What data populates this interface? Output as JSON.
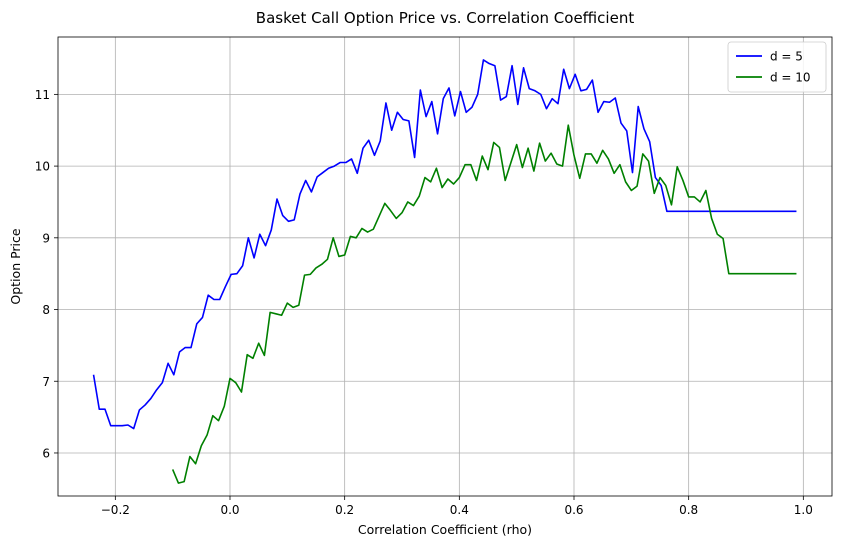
{
  "chart_data": {
    "type": "line",
    "title": "Basket Call Option Price vs. Correlation Coefficient",
    "xlabel": "Correlation Coefficient (rho)",
    "ylabel": "Option Price",
    "xlim": [
      -0.3,
      1.05
    ],
    "ylim": [
      5.4,
      11.8
    ],
    "xticks": [
      -0.2,
      0.0,
      0.2,
      0.4,
      0.6,
      0.8,
      1.0
    ],
    "xtick_labels": [
      "−0.2",
      "0.0",
      "0.2",
      "0.4",
      "0.6",
      "0.8",
      "1.0"
    ],
    "yticks": [
      6,
      7,
      8,
      9,
      10,
      11
    ],
    "ytick_labels": [
      "6",
      "7",
      "8",
      "9",
      "10",
      "11"
    ],
    "grid": true,
    "legend_position": "top-right",
    "series": [
      {
        "name": "d = 5",
        "color": "#0000ff",
        "x": [
          -0.238,
          -0.228,
          -0.218,
          -0.208,
          -0.198,
          -0.188,
          -0.178,
          -0.168,
          -0.158,
          -0.148,
          -0.138,
          -0.128,
          -0.118,
          -0.108,
          -0.098,
          -0.088,
          -0.078,
          -0.068,
          -0.058,
          -0.048,
          -0.038,
          -0.028,
          -0.018,
          -0.008,
          0.002,
          0.012,
          0.022,
          0.032,
          0.042,
          0.052,
          0.062,
          0.072,
          0.082,
          0.092,
          0.102,
          0.112,
          0.122,
          0.132,
          0.142,
          0.152,
          0.162,
          0.172,
          0.182,
          0.192,
          0.202,
          0.212,
          0.222,
          0.232,
          0.242,
          0.252,
          0.262,
          0.272,
          0.282,
          0.292,
          0.302,
          0.312,
          0.322,
          0.332,
          0.342,
          0.352,
          0.362,
          0.372,
          0.382,
          0.392,
          0.402,
          0.412,
          0.422,
          0.432,
          0.442,
          0.452,
          0.462,
          0.472,
          0.482,
          0.492,
          0.502,
          0.512,
          0.522,
          0.532,
          0.542,
          0.552,
          0.562,
          0.572,
          0.582,
          0.592,
          0.602,
          0.612,
          0.622,
          0.632,
          0.642,
          0.652,
          0.662,
          0.672,
          0.682,
          0.692,
          0.702,
          0.712,
          0.722,
          0.732,
          0.742,
          0.752,
          0.762,
          0.772,
          0.782,
          0.792,
          0.802,
          0.812,
          0.822,
          0.832,
          0.842,
          0.852,
          0.862,
          0.872,
          0.882,
          0.892,
          0.902,
          0.912,
          0.922,
          0.932,
          0.942,
          0.952,
          0.962,
          0.972,
          0.982,
          0.988
        ],
        "y": [
          7.09,
          6.61,
          6.61,
          6.38,
          6.38,
          6.38,
          6.39,
          6.34,
          6.6,
          6.67,
          6.76,
          6.88,
          6.98,
          7.25,
          7.09,
          7.41,
          7.47,
          7.47,
          7.8,
          7.89,
          8.2,
          8.14,
          8.14,
          8.32,
          8.49,
          8.5,
          8.61,
          9.0,
          8.72,
          9.05,
          8.89,
          9.11,
          9.54,
          9.31,
          9.23,
          9.25,
          9.61,
          9.8,
          9.64,
          9.85,
          9.91,
          9.97,
          10.0,
          10.05,
          10.05,
          10.1,
          9.9,
          10.25,
          10.36,
          10.15,
          10.35,
          10.88,
          10.5,
          10.75,
          10.65,
          10.63,
          10.12,
          11.06,
          10.69,
          10.9,
          10.45,
          10.94,
          11.09,
          10.7,
          11.04,
          10.75,
          10.82,
          11.0,
          11.48,
          11.43,
          11.4,
          10.92,
          10.97,
          11.4,
          10.86,
          11.37,
          11.08,
          11.05,
          11.0,
          10.8,
          10.94,
          10.87,
          11.35,
          11.08,
          11.28,
          11.05,
          11.07,
          11.2,
          10.75,
          10.9,
          10.89,
          10.95,
          10.6,
          10.49,
          9.91,
          10.83,
          10.52,
          10.34,
          9.84,
          9.73,
          9.37,
          9.37,
          9.37,
          9.37,
          9.37,
          9.37,
          9.37,
          9.37,
          9.37,
          9.37,
          9.37,
          9.37,
          9.37,
          9.37,
          9.37,
          9.37,
          9.37,
          9.37,
          9.37,
          9.37,
          9.37,
          9.37,
          9.37,
          9.37
        ]
      },
      {
        "name": "d = 10",
        "color": "#008000",
        "x": [
          -0.1,
          -0.09,
          -0.08,
          -0.07,
          -0.06,
          -0.05,
          -0.04,
          -0.03,
          -0.02,
          -0.01,
          0.0,
          0.01,
          0.02,
          0.03,
          0.04,
          0.05,
          0.06,
          0.07,
          0.08,
          0.09,
          0.1,
          0.11,
          0.12,
          0.13,
          0.14,
          0.15,
          0.16,
          0.17,
          0.18,
          0.19,
          0.2,
          0.21,
          0.22,
          0.23,
          0.24,
          0.25,
          0.26,
          0.27,
          0.28,
          0.29,
          0.3,
          0.31,
          0.32,
          0.33,
          0.34,
          0.35,
          0.36,
          0.37,
          0.38,
          0.39,
          0.4,
          0.41,
          0.42,
          0.43,
          0.44,
          0.45,
          0.46,
          0.47,
          0.48,
          0.49,
          0.5,
          0.51,
          0.52,
          0.53,
          0.54,
          0.55,
          0.56,
          0.57,
          0.58,
          0.59,
          0.6,
          0.61,
          0.62,
          0.63,
          0.64,
          0.65,
          0.66,
          0.67,
          0.68,
          0.69,
          0.7,
          0.71,
          0.72,
          0.73,
          0.74,
          0.75,
          0.76,
          0.77,
          0.78,
          0.79,
          0.8,
          0.81,
          0.82,
          0.83,
          0.84,
          0.85,
          0.86,
          0.87,
          0.88,
          0.89,
          0.9,
          0.91,
          0.92,
          0.93,
          0.94,
          0.95,
          0.96,
          0.97,
          0.98,
          0.988
        ],
        "y": [
          5.77,
          5.58,
          5.6,
          5.95,
          5.85,
          6.1,
          6.25,
          6.52,
          6.45,
          6.65,
          7.04,
          6.98,
          6.85,
          7.37,
          7.32,
          7.53,
          7.36,
          7.96,
          7.94,
          7.92,
          8.09,
          8.03,
          8.06,
          8.48,
          8.49,
          8.58,
          8.63,
          8.7,
          9.0,
          8.74,
          8.76,
          9.02,
          9.0,
          9.13,
          9.08,
          9.12,
          9.3,
          9.48,
          9.38,
          9.27,
          9.35,
          9.5,
          9.45,
          9.58,
          9.84,
          9.78,
          9.97,
          9.7,
          9.82,
          9.75,
          9.84,
          10.02,
          10.02,
          9.8,
          10.14,
          9.95,
          10.33,
          10.26,
          9.8,
          10.05,
          10.3,
          9.98,
          10.25,
          9.93,
          10.32,
          10.07,
          10.18,
          10.03,
          10.0,
          10.57,
          10.15,
          9.83,
          10.17,
          10.17,
          10.04,
          10.22,
          10.1,
          9.9,
          10.02,
          9.78,
          9.66,
          9.72,
          10.17,
          10.07,
          9.62,
          9.84,
          9.73,
          9.46,
          9.99,
          9.8,
          9.57,
          9.57,
          9.5,
          9.66,
          9.27,
          9.05,
          8.99,
          8.5,
          8.5,
          8.5,
          8.5,
          8.5,
          8.5,
          8.5,
          8.5,
          8.5,
          8.5,
          8.5,
          8.5,
          8.5
        ]
      }
    ]
  }
}
